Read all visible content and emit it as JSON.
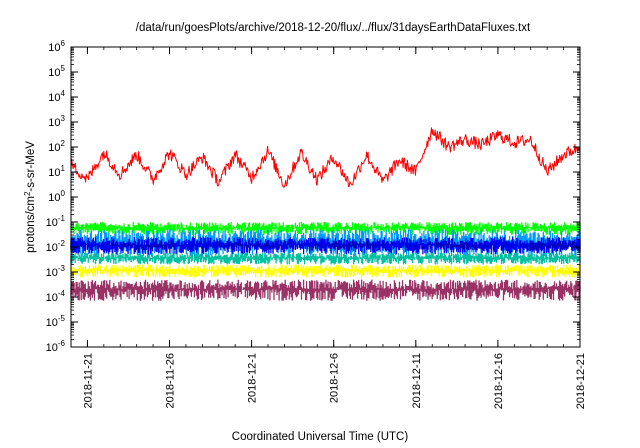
{
  "chart_data": {
    "type": "line",
    "title": "/data/run/goesPlots/archive/2018-12-20/flux/../flux/31daysEarthDataFluxes.txt",
    "xlabel": "Coordinated Universal Time (UTC)",
    "ylabel": {
      "prefix": "protons/cm",
      "sup": "2",
      "suffix": "-s-sr-MeV"
    },
    "yscale": "log",
    "ylim": [
      1e-06,
      1000000.0
    ],
    "yticks": [
      {
        "value": 1e-06,
        "base": "10",
        "exp": "-6"
      },
      {
        "value": 1e-05,
        "base": "10",
        "exp": "-5"
      },
      {
        "value": 0.0001,
        "base": "10",
        "exp": "-4"
      },
      {
        "value": 0.001,
        "base": "10",
        "exp": "-3"
      },
      {
        "value": 0.01,
        "base": "10",
        "exp": "-2"
      },
      {
        "value": 0.1,
        "base": "10",
        "exp": "-1"
      },
      {
        "value": 1,
        "base": "10",
        "exp": "0"
      },
      {
        "value": 10.0,
        "base": "10",
        "exp": "1"
      },
      {
        "value": 100.0,
        "base": "10",
        "exp": "2"
      },
      {
        "value": 1000.0,
        "base": "10",
        "exp": "3"
      },
      {
        "value": 10000.0,
        "base": "10",
        "exp": "4"
      },
      {
        "value": 100000.0,
        "base": "10",
        "exp": "5"
      },
      {
        "value": 1000000.0,
        "base": "10",
        "exp": "6"
      }
    ],
    "xlim": [
      "2018-11-20",
      "2018-12-21"
    ],
    "xticks": [
      "2018-11-21",
      "2018-11-26",
      "2018-12-1",
      "2018-12-6",
      "2018-12-11",
      "2018-12-16",
      "2018-12-21"
    ],
    "grid": false,
    "series": [
      {
        "color": "#ff0000",
        "x": [
          "2018-11-20",
          "2018-11-21",
          "2018-11-22",
          "2018-11-23",
          "2018-11-24",
          "2018-11-25",
          "2018-11-26",
          "2018-11-27",
          "2018-11-28",
          "2018-11-29",
          "2018-11-30",
          "2018-12-01",
          "2018-12-02",
          "2018-12-03",
          "2018-12-04",
          "2018-12-05",
          "2018-12-06",
          "2018-12-07",
          "2018-12-08",
          "2018-12-09",
          "2018-12-10",
          "2018-12-11",
          "2018-12-12",
          "2018-12-13",
          "2018-12-14",
          "2018-12-15",
          "2018-12-16",
          "2018-12-17",
          "2018-12-18",
          "2018-12-19",
          "2018-12-20",
          "2018-12-21"
        ],
        "values": [
          20,
          5,
          60,
          8,
          50,
          5,
          60,
          8,
          40,
          4,
          50,
          6,
          70,
          3,
          60,
          5,
          40,
          3,
          50,
          4,
          30,
          10,
          500,
          100,
          200,
          120,
          300,
          150,
          200,
          10,
          50,
          100
        ],
        "band_low": [
          3,
          1,
          10,
          2,
          10,
          1,
          10,
          2,
          8,
          1,
          10,
          1,
          15,
          1,
          10,
          1,
          8,
          1,
          10,
          1,
          6,
          2,
          100,
          20,
          50,
          30,
          60,
          30,
          40,
          3,
          10,
          20
        ],
        "band_high": [
          60,
          15,
          150,
          25,
          120,
          15,
          150,
          25,
          100,
          12,
          120,
          18,
          200,
          10,
          150,
          15,
          100,
          10,
          120,
          12,
          80,
          30,
          800,
          300,
          500,
          350,
          700,
          400,
          600,
          30,
          150,
          300
        ]
      },
      {
        "color": "#00ff00",
        "range": [
          0.03,
          0.1
        ]
      },
      {
        "color": "#0099ff",
        "range": [
          0.004,
          0.05
        ]
      },
      {
        "color": "#0000ff",
        "range": [
          0.005,
          0.025
        ]
      },
      {
        "color": "#00c0a0",
        "range": [
          0.002,
          0.006
        ]
      },
      {
        "color": "#ffff00",
        "range": [
          0.0006,
          0.002
        ]
      },
      {
        "color": "#993366",
        "range": [
          7e-05,
          0.0005
        ]
      }
    ]
  }
}
